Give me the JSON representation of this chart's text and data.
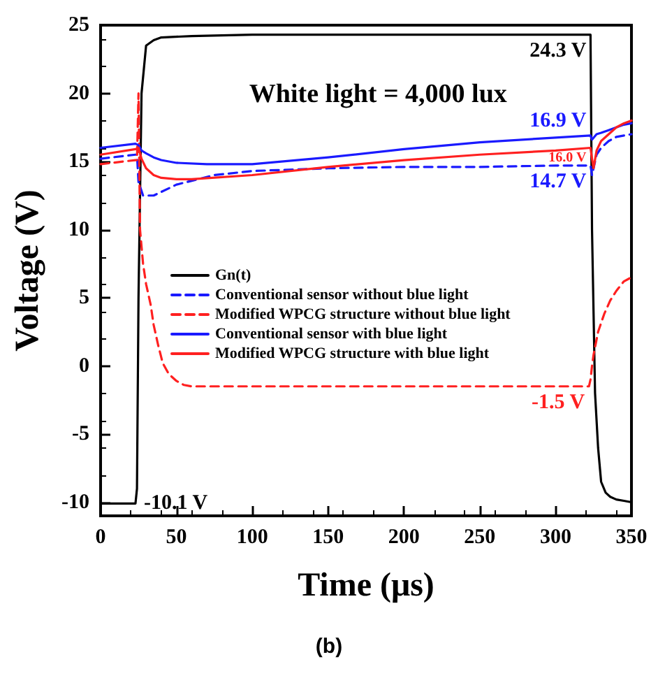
{
  "chart_data": {
    "type": "line",
    "xlabel": "Time (μs)",
    "ylabel": "Voltage (V)",
    "xlim": [
      0,
      350
    ],
    "xticks": [
      0,
      50,
      100,
      150,
      200,
      250,
      300,
      350
    ],
    "ylim": [
      -11,
      25
    ],
    "yticks": [
      -10,
      -5,
      0,
      5,
      10,
      15,
      20,
      25
    ],
    "grid": false,
    "legend": "left",
    "marker": "none",
    "series": [
      {
        "name": "Gn(t)",
        "color": "#000000",
        "line_style": "solid",
        "x": [
          0,
          23,
          24,
          25,
          27,
          30,
          35,
          40,
          60,
          100,
          200,
          300,
          323,
          324,
          326,
          328,
          330,
          333,
          336,
          340,
          345,
          350
        ],
        "values": [
          -10.1,
          -10.1,
          -9,
          5,
          20,
          23.5,
          23.9,
          24.1,
          24.2,
          24.3,
          24.3,
          24.3,
          24.3,
          10,
          -2,
          -6,
          -8.5,
          -9.3,
          -9.6,
          -9.8,
          -9.9,
          -10
        ]
      },
      {
        "name": "Conventional sensor without blue light",
        "color": "#1a1aff",
        "line_style": "dashed",
        "x": [
          0,
          23,
          24,
          25,
          28,
          35,
          50,
          75,
          100,
          150,
          200,
          250,
          300,
          323,
          324,
          327,
          330,
          335,
          340,
          350
        ],
        "values": [
          15.2,
          15.5,
          15.5,
          13.5,
          12.5,
          12.5,
          13.3,
          14,
          14.3,
          14.5,
          14.6,
          14.6,
          14.7,
          14.7,
          14,
          15.5,
          16,
          16.5,
          16.8,
          17
        ]
      },
      {
        "name": "Modified WPCG structure without blue light",
        "color": "#ff2020",
        "line_style": "dashed",
        "x": [
          0,
          23,
          24,
          25,
          26,
          28,
          30,
          33,
          35,
          38,
          41,
          45,
          50,
          55,
          60,
          100,
          200,
          300,
          322,
          323,
          324,
          325,
          328,
          332,
          336,
          340,
          345,
          350
        ],
        "values": [
          14.8,
          15.1,
          15.1,
          20,
          10,
          7.5,
          6,
          4.5,
          3,
          1.5,
          0.2,
          -0.6,
          -1.1,
          -1.4,
          -1.5,
          -1.5,
          -1.5,
          -1.5,
          -1.5,
          -1,
          0,
          0.8,
          2.5,
          3.8,
          4.8,
          5.5,
          6.2,
          6.5
        ]
      },
      {
        "name": "Conventional sensor with blue light",
        "color": "#1a1aff",
        "line_style": "solid",
        "x": [
          0,
          23,
          25,
          27,
          30,
          35,
          40,
          50,
          70,
          100,
          150,
          200,
          250,
          300,
          323,
          324,
          327,
          330,
          335,
          340,
          345,
          350
        ],
        "values": [
          16,
          16.3,
          16.2,
          15.8,
          15.6,
          15.3,
          15.1,
          14.9,
          14.8,
          14.8,
          15.3,
          15.9,
          16.4,
          16.75,
          16.9,
          16.6,
          17,
          17.1,
          17.3,
          17.5,
          17.7,
          17.8
        ]
      },
      {
        "name": "Modified WPCG structure with blue light",
        "color": "#ff2020",
        "line_style": "solid",
        "x": [
          0,
          23,
          25,
          27,
          30,
          35,
          40,
          50,
          60,
          100,
          150,
          200,
          250,
          300,
          323,
          324,
          325,
          327,
          330,
          335,
          340,
          345,
          350
        ],
        "values": [
          15.5,
          15.9,
          16,
          15.2,
          14.5,
          14,
          13.8,
          13.7,
          13.7,
          14,
          14.6,
          15.1,
          15.5,
          15.8,
          16,
          15.2,
          14.5,
          15.8,
          16.5,
          17,
          17.5,
          17.8,
          18
        ]
      }
    ],
    "annotations": [
      "White light = 4,000 lux",
      {
        "text": "24.3 V",
        "x": 323,
        "y": 24.3
      },
      {
        "text": "16.9 V",
        "x": 323,
        "y": 16.9
      },
      {
        "text": "16.0 V",
        "x": 323,
        "y": 16
      },
      {
        "text": "14.7 V",
        "x": 323,
        "y": 14.7
      },
      {
        "text": "-1.5 V",
        "x": 322,
        "y": -1.5
      },
      {
        "text": "-10.1 V",
        "x": 23,
        "y": -10.1
      },
      "(b)"
    ]
  }
}
